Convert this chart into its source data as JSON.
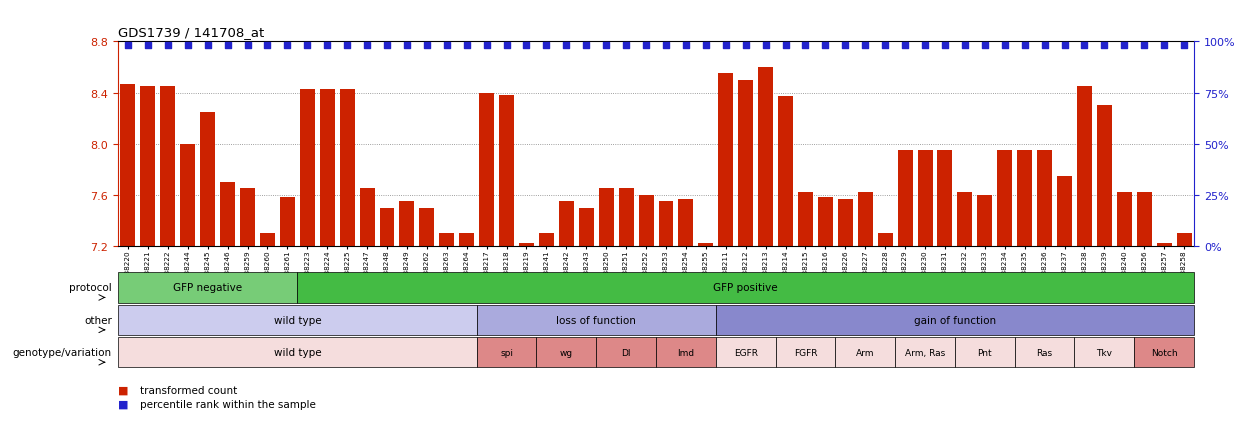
{
  "title": "GDS1739 / 141708_at",
  "samples": [
    "GSM88220",
    "GSM88221",
    "GSM88222",
    "GSM88244",
    "GSM88245",
    "GSM88246",
    "GSM88259",
    "GSM88260",
    "GSM88261",
    "GSM88223",
    "GSM88224",
    "GSM88225",
    "GSM88247",
    "GSM88248",
    "GSM88249",
    "GSM88262",
    "GSM88263",
    "GSM88264",
    "GSM88217",
    "GSM88218",
    "GSM88219",
    "GSM88241",
    "GSM88242",
    "GSM88243",
    "GSM88250",
    "GSM88251",
    "GSM88252",
    "GSM88253",
    "GSM88254",
    "GSM88255",
    "GSM88211",
    "GSM88212",
    "GSM88213",
    "GSM88214",
    "GSM88215",
    "GSM88216",
    "GSM88226",
    "GSM88227",
    "GSM88228",
    "GSM88229",
    "GSM88230",
    "GSM88231",
    "GSM88232",
    "GSM88233",
    "GSM88234",
    "GSM88235",
    "GSM88236",
    "GSM88237",
    "GSM88238",
    "GSM88239",
    "GSM88240",
    "GSM88256",
    "GSM88257",
    "GSM88258"
  ],
  "bar_values": [
    8.47,
    8.45,
    8.45,
    8.0,
    8.25,
    7.7,
    7.65,
    7.3,
    7.58,
    8.43,
    8.43,
    8.43,
    7.65,
    7.5,
    7.55,
    7.5,
    7.3,
    7.3,
    8.4,
    8.38,
    7.22,
    7.3,
    7.55,
    7.5,
    7.65,
    7.65,
    7.6,
    7.55,
    7.57,
    7.22,
    8.55,
    8.5,
    8.6,
    8.37,
    7.62,
    7.58,
    7.57,
    7.62,
    7.3,
    7.95,
    7.95,
    7.95,
    7.62,
    7.6,
    7.95,
    7.95,
    7.95,
    7.75,
    8.45,
    8.3,
    7.62,
    7.62,
    7.22,
    7.3
  ],
  "ymin": 7.2,
  "ymax": 8.8,
  "yticks": [
    7.2,
    7.6,
    8.0,
    8.4,
    8.8
  ],
  "right_ytick_labels": [
    "0%",
    "25%",
    "50%",
    "75%",
    "100%"
  ],
  "bar_color": "#cc2200",
  "percentile_color": "#2222cc",
  "percentile_yval": 8.77,
  "protocol_groups": [
    {
      "label": "GFP negative",
      "start": 0,
      "end": 9,
      "color": "#77cc77"
    },
    {
      "label": "GFP positive",
      "start": 9,
      "end": 54,
      "color": "#44bb44"
    }
  ],
  "other_groups": [
    {
      "label": "wild type",
      "start": 0,
      "end": 18,
      "color": "#ccccee"
    },
    {
      "label": "loss of function",
      "start": 18,
      "end": 30,
      "color": "#aaaadd"
    },
    {
      "label": "gain of function",
      "start": 30,
      "end": 54,
      "color": "#8888cc"
    }
  ],
  "genotype_groups": [
    {
      "label": "wild type",
      "start": 0,
      "end": 18,
      "color": "#f5dddd"
    },
    {
      "label": "spi",
      "start": 18,
      "end": 21,
      "color": "#dd8888"
    },
    {
      "label": "wg",
      "start": 21,
      "end": 24,
      "color": "#dd8888"
    },
    {
      "label": "Dl",
      "start": 24,
      "end": 27,
      "color": "#dd8888"
    },
    {
      "label": "Imd",
      "start": 27,
      "end": 30,
      "color": "#dd8888"
    },
    {
      "label": "EGFR",
      "start": 30,
      "end": 33,
      "color": "#f5dddd"
    },
    {
      "label": "FGFR",
      "start": 33,
      "end": 36,
      "color": "#f5dddd"
    },
    {
      "label": "Arm",
      "start": 36,
      "end": 39,
      "color": "#f5dddd"
    },
    {
      "label": "Arm, Ras",
      "start": 39,
      "end": 42,
      "color": "#f5dddd"
    },
    {
      "label": "Pnt",
      "start": 42,
      "end": 45,
      "color": "#f5dddd"
    },
    {
      "label": "Ras",
      "start": 45,
      "end": 48,
      "color": "#f5dddd"
    },
    {
      "label": "Tkv",
      "start": 48,
      "end": 51,
      "color": "#f5dddd"
    },
    {
      "label": "Notch",
      "start": 51,
      "end": 54,
      "color": "#dd8888"
    }
  ],
  "legend_items": [
    {
      "color": "#cc2200",
      "label": "transformed count"
    },
    {
      "color": "#2222cc",
      "label": "percentile rank within the sample"
    }
  ],
  "row_labels": [
    "protocol",
    "other",
    "genotype/variation"
  ],
  "background_color": "#ffffff",
  "tick_color_left": "#cc2200",
  "tick_color_right": "#2222cc"
}
